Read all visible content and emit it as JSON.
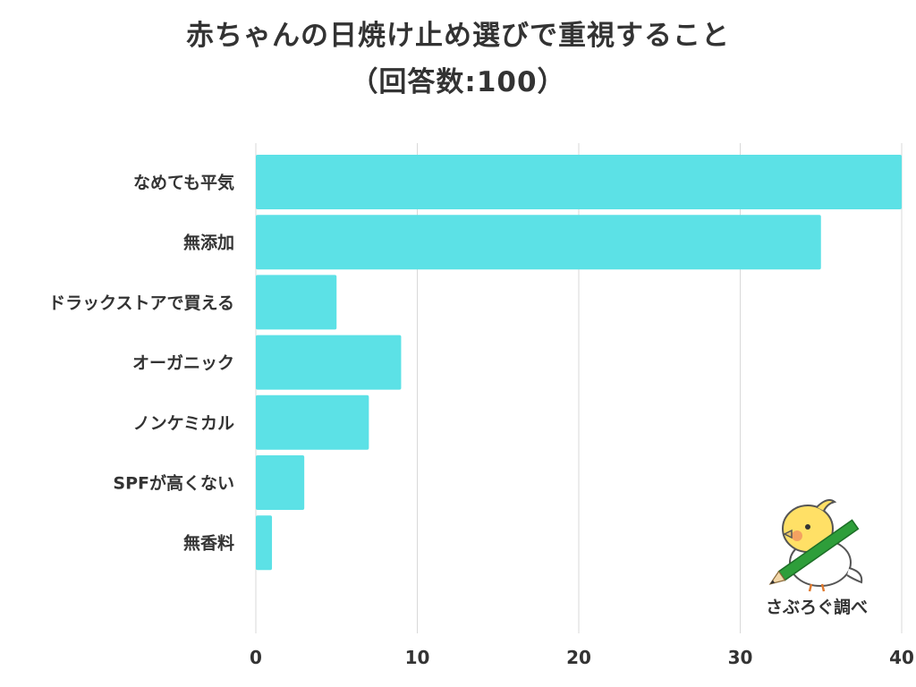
{
  "title": {
    "line1": "赤ちゃんの日焼け止め選びで重視すること",
    "line2": "（回答数:100）"
  },
  "credit": "さぶろぐ調べ",
  "colors": {
    "bar": "#5ce1e6",
    "grid": "#d9d9d9",
    "text": "#333333"
  },
  "chart_data": {
    "type": "bar",
    "orientation": "horizontal",
    "categories": [
      "なめても平気",
      "無添加",
      "ドラックストアで買える",
      "オーガニック",
      "ノンケミカル",
      "SPFが高くない",
      "無香料"
    ],
    "values": [
      40,
      35,
      5,
      9,
      7,
      3,
      1
    ],
    "xlim": [
      0,
      40
    ],
    "xticks": [
      0,
      10,
      20,
      30,
      40
    ],
    "grid": true
  }
}
